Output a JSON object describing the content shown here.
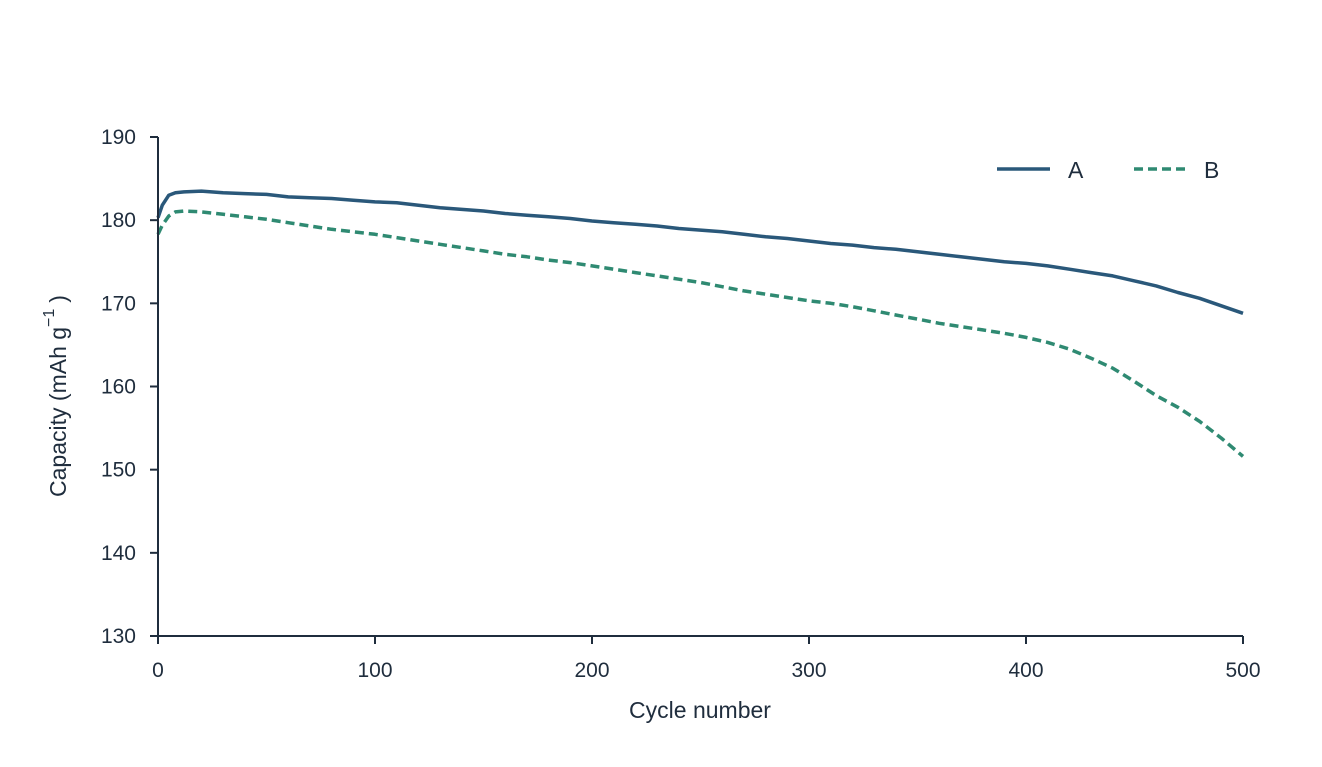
{
  "chart_data": {
    "type": "line",
    "xlabel": "Cycle number",
    "ylabel": "Capacity (mAh g",
    "ylabel_sup": "−1",
    "ylabel_close": ")",
    "xlim": [
      0,
      500
    ],
    "ylim": [
      130,
      190
    ],
    "xticks": [
      0,
      100,
      200,
      300,
      400,
      500
    ],
    "yticks": [
      130,
      140,
      150,
      160,
      170,
      180,
      190
    ],
    "grid": false,
    "legend_position": "top-right",
    "series": [
      {
        "name": "A",
        "color": "#2a587a",
        "dash": "solid",
        "x": [
          0,
          2,
          5,
          8,
          12,
          20,
          30,
          40,
          50,
          60,
          70,
          80,
          90,
          100,
          110,
          120,
          130,
          140,
          150,
          160,
          170,
          180,
          190,
          200,
          210,
          220,
          230,
          240,
          250,
          260,
          270,
          280,
          290,
          300,
          310,
          320,
          330,
          340,
          350,
          360,
          370,
          380,
          390,
          400,
          410,
          420,
          430,
          440,
          450,
          460,
          470,
          480,
          490,
          500
        ],
        "y": [
          180.3,
          181.8,
          183.0,
          183.3,
          183.4,
          183.5,
          183.3,
          183.2,
          183.1,
          182.8,
          182.7,
          182.6,
          182.4,
          182.2,
          182.1,
          181.8,
          181.5,
          181.3,
          181.1,
          180.8,
          180.6,
          180.4,
          180.2,
          179.9,
          179.7,
          179.5,
          179.3,
          179.0,
          178.8,
          178.6,
          178.3,
          178.0,
          177.8,
          177.5,
          177.2,
          177.0,
          176.7,
          176.5,
          176.2,
          175.9,
          175.6,
          175.3,
          175.0,
          174.8,
          174.5,
          174.1,
          173.7,
          173.3,
          172.7,
          172.1,
          171.3,
          170.6,
          169.7,
          168.8
        ]
      },
      {
        "name": "B",
        "color": "#2f8a72",
        "dash": "dashed",
        "x": [
          0,
          2,
          5,
          8,
          12,
          20,
          30,
          40,
          50,
          60,
          70,
          80,
          90,
          100,
          110,
          120,
          130,
          140,
          150,
          160,
          170,
          180,
          190,
          200,
          210,
          220,
          230,
          240,
          250,
          260,
          270,
          280,
          290,
          300,
          310,
          320,
          330,
          340,
          350,
          360,
          370,
          380,
          390,
          400,
          410,
          420,
          430,
          440,
          450,
          460,
          470,
          480,
          490,
          500
        ],
        "y": [
          178.3,
          179.4,
          180.5,
          181.0,
          181.1,
          181.0,
          180.7,
          180.4,
          180.1,
          179.7,
          179.3,
          178.9,
          178.6,
          178.3,
          177.9,
          177.5,
          177.1,
          176.7,
          176.3,
          175.9,
          175.6,
          175.2,
          174.9,
          174.5,
          174.1,
          173.7,
          173.3,
          172.9,
          172.5,
          172.0,
          171.5,
          171.1,
          170.7,
          170.3,
          170.0,
          169.6,
          169.1,
          168.6,
          168.1,
          167.6,
          167.2,
          166.8,
          166.4,
          165.9,
          165.3,
          164.5,
          163.4,
          162.2,
          160.6,
          158.9,
          157.5,
          155.8,
          153.8,
          151.6
        ]
      }
    ]
  }
}
